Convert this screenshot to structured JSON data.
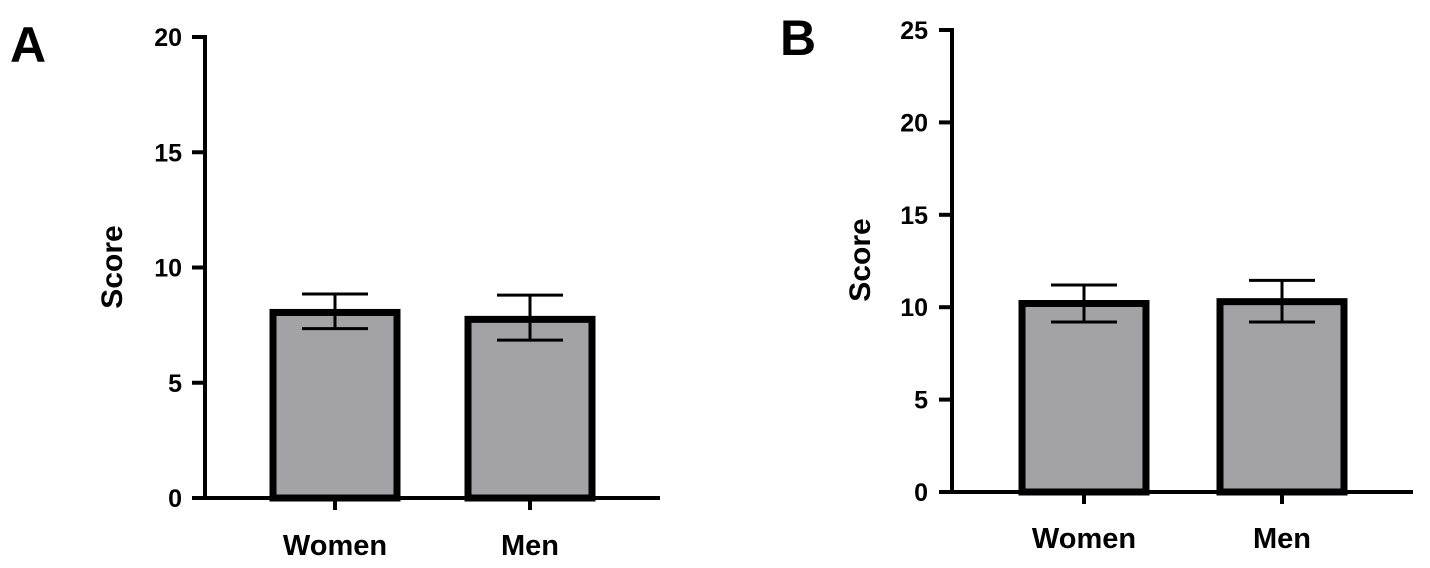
{
  "colors": {
    "bar_fill": "#a3a3a5",
    "stroke": "#000000",
    "background": "#ffffff"
  },
  "chart_data": [
    {
      "type": "bar",
      "panel": "A",
      "categories": [
        "Women",
        "Men"
      ],
      "values": [
        8.05,
        7.75
      ],
      "error_low": [
        7.35,
        6.85
      ],
      "error_high": [
        8.85,
        8.8
      ],
      "ylabel": "Score",
      "xlabel": "",
      "ylim": [
        0,
        20
      ],
      "yticks": [
        "0",
        "5",
        "10",
        "15",
        "20"
      ],
      "grid": false,
      "legend": "none"
    },
    {
      "type": "bar",
      "panel": "B",
      "categories": [
        "Women",
        "Men"
      ],
      "values": [
        10.2,
        10.3
      ],
      "error_low": [
        9.2,
        9.2
      ],
      "error_high": [
        11.2,
        11.45
      ],
      "ylabel": "Score",
      "xlabel": "",
      "ylim": [
        0,
        25
      ],
      "yticks": [
        "0",
        "5",
        "10",
        "15",
        "20",
        "25"
      ],
      "grid": false,
      "legend": "none"
    }
  ]
}
